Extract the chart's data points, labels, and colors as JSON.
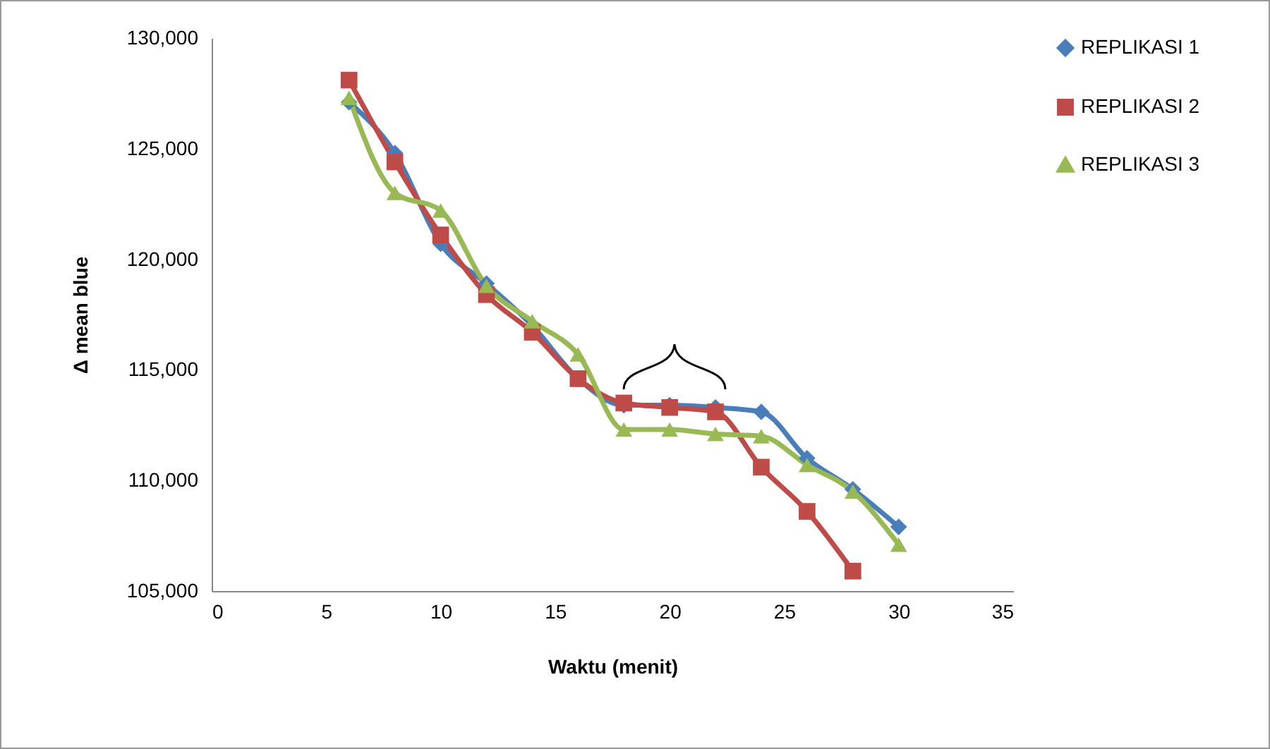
{
  "chart_data": {
    "type": "line",
    "xlabel": "Waktu (menit)",
    "ylabel": "Δ mean blue",
    "x": [
      6,
      8,
      10,
      12,
      14,
      16,
      18,
      20,
      22,
      24,
      26,
      28,
      30
    ],
    "series": [
      {
        "name": "REPLIKASI 1",
        "color": "#4a7ebb",
        "marker": "diamond",
        "values": [
          127100,
          124800,
          120700,
          118900,
          117000,
          114600,
          113400,
          113400,
          113300,
          113100,
          111000,
          109600,
          107900
        ]
      },
      {
        "name": "REPLIKASI 2",
        "color": "#be4b48",
        "marker": "square",
        "values": [
          128100,
          124400,
          121100,
          118400,
          116700,
          114600,
          113500,
          113300,
          113100,
          110600,
          108600,
          105900,
          null
        ]
      },
      {
        "name": "REPLIKASI 3",
        "color": "#98b954",
        "marker": "triangle",
        "values": [
          127300,
          123000,
          122200,
          118800,
          117200,
          115700,
          112300,
          112300,
          112100,
          112000,
          110700,
          109500,
          107100
        ]
      }
    ],
    "xlim": [
      0,
      35
    ],
    "xticks": [
      0,
      5,
      10,
      15,
      20,
      25,
      30,
      35
    ],
    "ylim": [
      105000,
      130000
    ],
    "yticks": [
      {
        "value": 105000,
        "label": "105,000"
      },
      {
        "value": 110000,
        "label": "110,000"
      },
      {
        "value": 115000,
        "label": "115,000"
      },
      {
        "value": 120000,
        "label": "120,000"
      },
      {
        "value": 125000,
        "label": "125,000"
      },
      {
        "value": 130000,
        "label": "130,000"
      }
    ],
    "legend": "right",
    "line_style": "solid"
  }
}
